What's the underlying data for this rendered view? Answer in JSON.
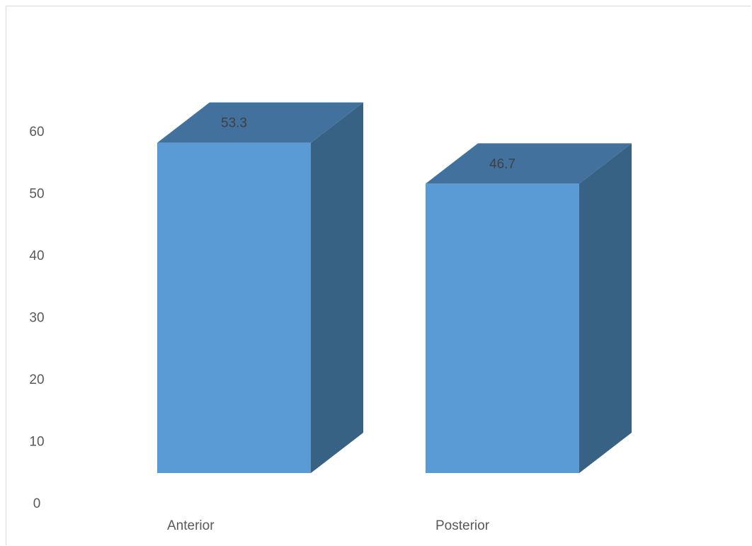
{
  "chart_data": {
    "type": "bar",
    "style": "3d-column",
    "categories": [
      "Anterior",
      "Posterior"
    ],
    "values": [
      53.3,
      46.7
    ],
    "data_labels": [
      "53.3",
      "46.7"
    ],
    "title": "",
    "xlabel": "",
    "ylabel": "",
    "ylim": [
      0,
      60
    ],
    "yticks": [
      "0",
      "10",
      "20",
      "30",
      "40",
      "50",
      "60"
    ],
    "grid": false,
    "legend": "none",
    "colors": {
      "front": "#5b9bd5",
      "top": "#41719c",
      "side": "#386284"
    }
  }
}
